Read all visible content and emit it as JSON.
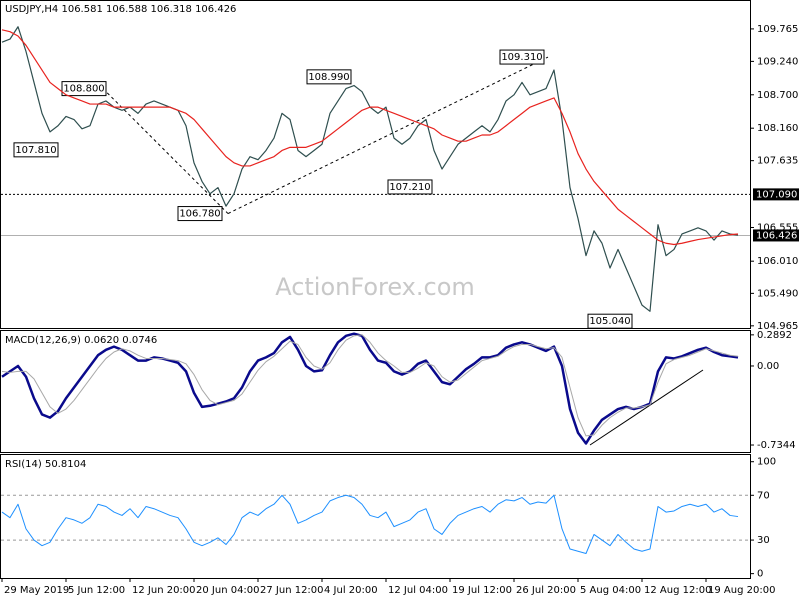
{
  "chart_data": [
    {
      "type": "line",
      "title": "USDJPY,H4  106.581 106.588 106.318 106.426",
      "watermark": "ActionForex.com",
      "ylim": [
        104.93,
        110.2
      ],
      "yticks": [
        109.765,
        {
          "value": 109.24,
          "label": "109.240"
        },
        {
          "value": 108.7,
          "label": "108.700"
        },
        {
          "value": 108.16,
          "label": "108.160"
        },
        107.635,
        106.555,
        {
          "value": 106.01,
          "label": "106.010"
        },
        {
          "value": 105.49,
          "label": "105.490"
        },
        104.965
      ],
      "hline": {
        "value": 107.09,
        "label": "107.090"
      },
      "last_price": {
        "value": 106.426,
        "label": "106.426"
      },
      "annotations": [
        {
          "value": 108.8,
          "label": "108.800"
        },
        {
          "value": 107.81,
          "label": "107.810"
        },
        {
          "value": 106.78,
          "label": "106.780"
        },
        {
          "value": 108.99,
          "label": "108.990"
        },
        {
          "value": 109.31,
          "label": "109.310"
        },
        {
          "value": 107.21,
          "label": "107.210"
        },
        {
          "value": 105.04,
          "label": "105.040"
        }
      ],
      "series": [
        {
          "color": "#2f4f4f",
          "values": [
            109.55,
            109.6,
            109.8,
            109.4,
            108.9,
            108.4,
            108.1,
            108.2,
            108.35,
            108.3,
            108.15,
            108.2,
            108.55,
            108.6,
            108.5,
            108.45,
            108.5,
            108.4,
            108.55,
            108.6,
            108.55,
            108.5,
            108.45,
            108.2,
            107.6,
            107.3,
            107.1,
            107.2,
            106.9,
            107.1,
            107.5,
            107.7,
            107.65,
            107.8,
            108.0,
            108.4,
            108.3,
            107.8,
            107.7,
            107.8,
            107.9,
            108.4,
            108.6,
            108.8,
            108.85,
            108.75,
            108.5,
            108.4,
            108.5,
            108.0,
            107.9,
            108.0,
            108.2,
            108.3,
            107.8,
            107.5,
            107.7,
            107.9,
            108.0,
            108.1,
            108.2,
            108.1,
            108.3,
            108.6,
            108.7,
            108.9,
            108.7,
            108.75,
            108.8,
            109.1,
            108.3,
            107.2,
            106.7,
            106.1,
            106.5,
            106.3,
            105.9,
            106.2,
            105.9,
            105.6,
            105.3,
            105.2,
            106.6,
            106.1,
            106.2,
            106.45,
            106.5,
            106.55,
            106.5,
            106.35,
            106.5,
            106.45,
            106.43
          ]
        },
        {
          "color": "#e8231f",
          "values": [
            109.75,
            109.72,
            109.65,
            109.5,
            109.3,
            109.1,
            108.9,
            108.8,
            108.7,
            108.65,
            108.6,
            108.55,
            108.55,
            108.55,
            108.5,
            108.5,
            108.5,
            108.5,
            108.5,
            108.5,
            108.5,
            108.5,
            108.45,
            108.4,
            108.3,
            108.15,
            108.0,
            107.85,
            107.7,
            107.6,
            107.55,
            107.55,
            107.6,
            107.65,
            107.7,
            107.8,
            107.85,
            107.85,
            107.85,
            107.9,
            107.95,
            108.05,
            108.15,
            108.25,
            108.35,
            108.45,
            108.5,
            108.5,
            108.45,
            108.4,
            108.35,
            108.3,
            108.25,
            108.2,
            108.15,
            108.05,
            108.0,
            107.95,
            107.95,
            108.0,
            108.05,
            108.05,
            108.1,
            108.2,
            108.3,
            108.4,
            108.5,
            108.55,
            108.6,
            108.65,
            108.4,
            108.1,
            107.75,
            107.5,
            107.3,
            107.15,
            107.0,
            106.85,
            106.75,
            106.65,
            106.55,
            106.45,
            106.35,
            106.3,
            106.28,
            106.3,
            106.33,
            106.36,
            106.38,
            106.4,
            106.42,
            106.44,
            106.45
          ]
        }
      ]
    },
    {
      "type": "line",
      "title": "MACD(12,26,9) 0.0620 0.0746",
      "ylim": [
        -0.79,
        0.325
      ],
      "yticks": [
        0.2892,
        {
          "value": 0,
          "label": "0.00"
        },
        -0.7344
      ],
      "series": [
        {
          "color": "#0a0a8c",
          "values": [
            -0.1,
            -0.05,
            0.0,
            -0.1,
            -0.3,
            -0.45,
            -0.48,
            -0.42,
            -0.3,
            -0.2,
            -0.1,
            0.0,
            0.1,
            0.15,
            0.18,
            0.15,
            0.1,
            0.05,
            0.05,
            0.08,
            0.07,
            0.05,
            0.03,
            -0.05,
            -0.25,
            -0.38,
            -0.37,
            -0.35,
            -0.33,
            -0.3,
            -0.2,
            -0.05,
            0.05,
            0.08,
            0.12,
            0.22,
            0.27,
            0.15,
            0.0,
            -0.05,
            -0.04,
            0.1,
            0.22,
            0.28,
            0.3,
            0.28,
            0.15,
            0.05,
            0.03,
            -0.05,
            -0.08,
            -0.05,
            0.02,
            0.05,
            -0.05,
            -0.15,
            -0.17,
            -0.1,
            -0.03,
            0.02,
            0.08,
            0.08,
            0.1,
            0.17,
            0.2,
            0.22,
            0.2,
            0.17,
            0.14,
            0.18,
            0.0,
            -0.4,
            -0.62,
            -0.72,
            -0.6,
            -0.5,
            -0.45,
            -0.4,
            -0.38,
            -0.4,
            -0.38,
            -0.35,
            -0.05,
            0.08,
            0.07,
            0.09,
            0.12,
            0.15,
            0.17,
            0.13,
            0.1,
            0.09,
            0.08
          ]
        },
        {
          "color": "#a8a8a8",
          "values": [
            -0.05,
            -0.06,
            -0.05,
            -0.05,
            -0.12,
            -0.25,
            -0.38,
            -0.44,
            -0.4,
            -0.32,
            -0.22,
            -0.12,
            -0.02,
            0.07,
            0.13,
            0.16,
            0.14,
            0.1,
            0.07,
            0.07,
            0.07,
            0.06,
            0.05,
            0.02,
            -0.08,
            -0.22,
            -0.32,
            -0.36,
            -0.34,
            -0.32,
            -0.26,
            -0.15,
            -0.04,
            0.04,
            0.09,
            0.16,
            0.23,
            0.2,
            0.08,
            0.0,
            -0.03,
            0.03,
            0.15,
            0.24,
            0.28,
            0.29,
            0.22,
            0.12,
            0.05,
            0.0,
            -0.06,
            -0.06,
            -0.02,
            0.03,
            0.0,
            -0.1,
            -0.15,
            -0.13,
            -0.07,
            -0.01,
            0.05,
            0.07,
            0.09,
            0.14,
            0.18,
            0.2,
            0.2,
            0.18,
            0.16,
            0.17,
            0.08,
            -0.2,
            -0.48,
            -0.65,
            -0.64,
            -0.55,
            -0.48,
            -0.43,
            -0.39,
            -0.39,
            -0.38,
            -0.36,
            -0.15,
            0.02,
            0.06,
            0.08,
            0.1,
            0.13,
            0.16,
            0.14,
            0.12,
            0.1,
            0.09
          ]
        }
      ]
    },
    {
      "type": "line",
      "title": "RSI(14) 50.8104",
      "ylim": [
        -3,
        106
      ],
      "yticks": [
        100,
        70,
        30,
        0
      ],
      "levels": [
        70,
        30
      ],
      "categories": [
        "29 May 2019",
        null,
        null,
        null,
        null,
        null,
        null,
        null,
        "5 Jun 12:00",
        null,
        null,
        null,
        null,
        null,
        null,
        null,
        "12 Jun 20:00",
        null,
        null,
        null,
        null,
        null,
        null,
        null,
        "20 Jun 04:00",
        null,
        null,
        null,
        null,
        null,
        null,
        null,
        "27 Jun 12:00",
        null,
        null,
        null,
        null,
        null,
        null,
        null,
        "4 Jul 20:00",
        null,
        null,
        null,
        null,
        null,
        null,
        null,
        "12 Jul 04:00",
        null,
        null,
        null,
        null,
        null,
        null,
        null,
        "19 Jul 12:00",
        null,
        null,
        null,
        null,
        null,
        null,
        null,
        "26 Jul 20:00",
        null,
        null,
        null,
        null,
        null,
        null,
        null,
        "5 Aug 04:00",
        null,
        null,
        null,
        null,
        null,
        null,
        null,
        "12 Aug 12:00",
        null,
        null,
        null,
        null,
        null,
        null,
        null,
        "19 Aug 20:00",
        null,
        null,
        null,
        null
      ],
      "series": [
        {
          "color": "#1e90ff",
          "values": [
            55,
            50,
            62,
            40,
            30,
            25,
            28,
            40,
            50,
            48,
            45,
            50,
            62,
            60,
            55,
            52,
            58,
            50,
            60,
            58,
            55,
            52,
            50,
            40,
            28,
            25,
            28,
            32,
            26,
            35,
            50,
            55,
            52,
            58,
            62,
            70,
            62,
            45,
            48,
            52,
            55,
            65,
            68,
            70,
            68,
            62,
            52,
            50,
            55,
            42,
            45,
            48,
            55,
            58,
            40,
            35,
            45,
            52,
            55,
            58,
            60,
            55,
            62,
            66,
            65,
            68,
            62,
            64,
            63,
            70,
            40,
            22,
            20,
            18,
            35,
            30,
            25,
            35,
            28,
            22,
            20,
            22,
            60,
            55,
            56,
            60,
            62,
            60,
            62,
            55,
            58,
            52,
            51
          ]
        }
      ]
    }
  ]
}
